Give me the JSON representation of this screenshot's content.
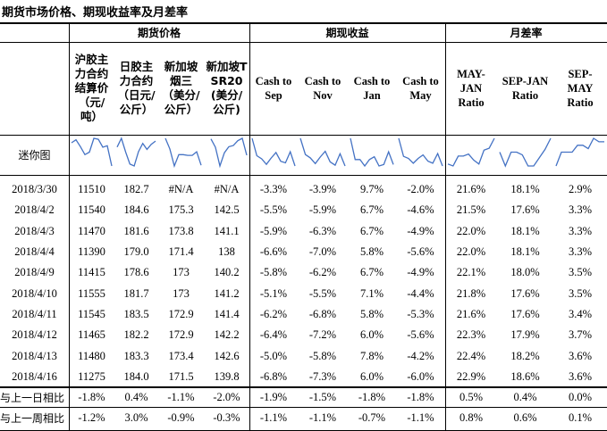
{
  "title": "期货市场价格、期现收益率及月差率",
  "groups": {
    "futures_price": "期货价格",
    "basis_return": "期现收益",
    "month_spread": "月差率"
  },
  "headers": [
    "沪胶主力合约结算价（元/吨）",
    "日胶主力合约（日元/公斤）",
    "新加坡烟三（美分/公斤）",
    "新加坡TSR20(美分/公斤)",
    "Cash to Sep",
    "Cash to Nov",
    "Cash to Jan",
    "Cash to May",
    "MAY-JAN Ratio",
    "SEP-JAN Ratio",
    "SEP-MAY Ratio"
  ],
  "sparkline_label": "迷你图",
  "sparkline_color": "#4472C4",
  "rows": [
    {
      "date": "2018/3/30",
      "values": [
        "11510",
        "182.7",
        "#N/A",
        "#N/A",
        "-3.3%",
        "-3.9%",
        "9.7%",
        "-2.0%",
        "21.6%",
        "18.1%",
        "2.9%"
      ]
    },
    {
      "date": "2018/4/2",
      "values": [
        "11540",
        "184.6",
        "175.3",
        "142.5",
        "-5.5%",
        "-5.9%",
        "6.7%",
        "-4.6%",
        "21.5%",
        "17.6%",
        "3.3%"
      ]
    },
    {
      "date": "2018/4/3",
      "values": [
        "11470",
        "181.6",
        "173.8",
        "141.1",
        "-5.9%",
        "-6.3%",
        "6.7%",
        "-4.9%",
        "22.0%",
        "18.1%",
        "3.3%"
      ]
    },
    {
      "date": "2018/4/4",
      "values": [
        "11390",
        "179.0",
        "171.4",
        "138",
        "-6.6%",
        "-7.0%",
        "5.8%",
        "-5.6%",
        "22.0%",
        "18.1%",
        "3.3%"
      ]
    },
    {
      "date": "2018/4/9",
      "values": [
        "11415",
        "178.6",
        "173",
        "140.2",
        "-5.8%",
        "-6.2%",
        "6.7%",
        "-4.9%",
        "22.1%",
        "18.0%",
        "3.5%"
      ]
    },
    {
      "date": "2018/4/10",
      "values": [
        "11555",
        "181.7",
        "173",
        "141.2",
        "-5.1%",
        "-5.5%",
        "7.1%",
        "-4.4%",
        "21.8%",
        "17.6%",
        "3.5%"
      ]
    },
    {
      "date": "2018/4/11",
      "values": [
        "11545",
        "183.5",
        "172.9",
        "141.4",
        "-6.2%",
        "-6.8%",
        "5.8%",
        "-5.3%",
        "21.6%",
        "17.6%",
        "3.4%"
      ]
    },
    {
      "date": "2018/4/12",
      "values": [
        "11465",
        "182.2",
        "172.9",
        "142.2",
        "-6.4%",
        "-7.2%",
        "6.0%",
        "-5.6%",
        "22.3%",
        "17.9%",
        "3.7%"
      ]
    },
    {
      "date": "2018/4/13",
      "values": [
        "11480",
        "183.3",
        "173.4",
        "142.6",
        "-5.0%",
        "-5.8%",
        "7.8%",
        "-4.2%",
        "22.4%",
        "18.2%",
        "3.6%"
      ]
    },
    {
      "date": "2018/4/16",
      "values": [
        "11275",
        "184.0",
        "171.5",
        "139.8",
        "-6.8%",
        "-7.3%",
        "6.0%",
        "-6.0%",
        "22.9%",
        "18.6%",
        "3.6%"
      ]
    }
  ],
  "compare_rows": [
    {
      "label": "与上一日相比",
      "values": [
        "-1.8%",
        "0.4%",
        "-1.1%",
        "-2.0%",
        "-1.9%",
        "-1.5%",
        "-1.8%",
        "-1.8%",
        "0.5%",
        "0.4%",
        "0.0%"
      ]
    },
    {
      "label": "与上一周相比",
      "values": [
        "-1.2%",
        "3.0%",
        "-0.9%",
        "-0.3%",
        "-1.1%",
        "-1.1%",
        "-0.7%",
        "-1.1%",
        "0.8%",
        "0.6%",
        "0.1%"
      ]
    }
  ]
}
